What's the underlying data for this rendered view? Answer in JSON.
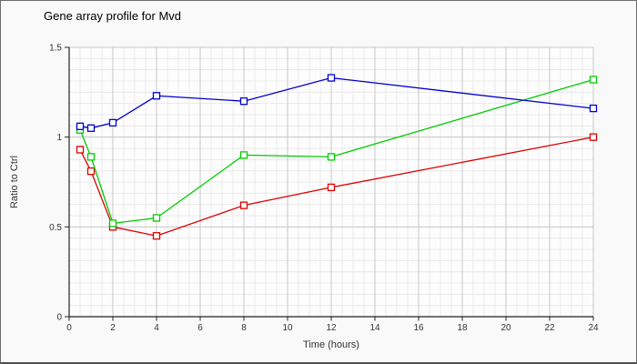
{
  "chart_data": {
    "type": "line",
    "title": "Gene array profile for Mvd",
    "xlabel": "Time (hours)",
    "ylabel": "Ratio to Ctrl",
    "xlim": [
      0,
      24
    ],
    "ylim": [
      0,
      1.5
    ],
    "xticks": [
      0,
      2,
      4,
      6,
      8,
      10,
      12,
      14,
      16,
      18,
      20,
      22,
      24
    ],
    "ytick_values": [
      0,
      0.5,
      1,
      1.5
    ],
    "ytick_labels": [
      "0",
      "0.5",
      "1",
      "1.5"
    ],
    "grid": "minor and major gridlines on",
    "legend_position": "none",
    "marker": "open-square",
    "x": [
      0.5,
      1,
      2,
      4,
      8,
      12,
      24
    ],
    "series": [
      {
        "name": "series-red",
        "color": "#dd0000",
        "values": [
          0.93,
          0.81,
          0.5,
          0.45,
          0.62,
          0.72,
          1.0
        ]
      },
      {
        "name": "series-green",
        "color": "#00cc00",
        "values": [
          1.04,
          0.89,
          0.52,
          0.55,
          0.9,
          0.89,
          1.32
        ]
      },
      {
        "name": "series-blue",
        "color": "#0000cc",
        "values": [
          1.06,
          1.05,
          1.08,
          1.23,
          1.2,
          1.33,
          1.16
        ]
      }
    ]
  },
  "colors": {
    "background": "#f9f9f9",
    "plot_background": "#fdfdfd",
    "axis": "#222222",
    "grid_major": "#c6c6c6",
    "grid_minor": "#eaeaea",
    "title_text": "#000000",
    "label_text": "#333333",
    "marker_fill": "#ffffff"
  }
}
